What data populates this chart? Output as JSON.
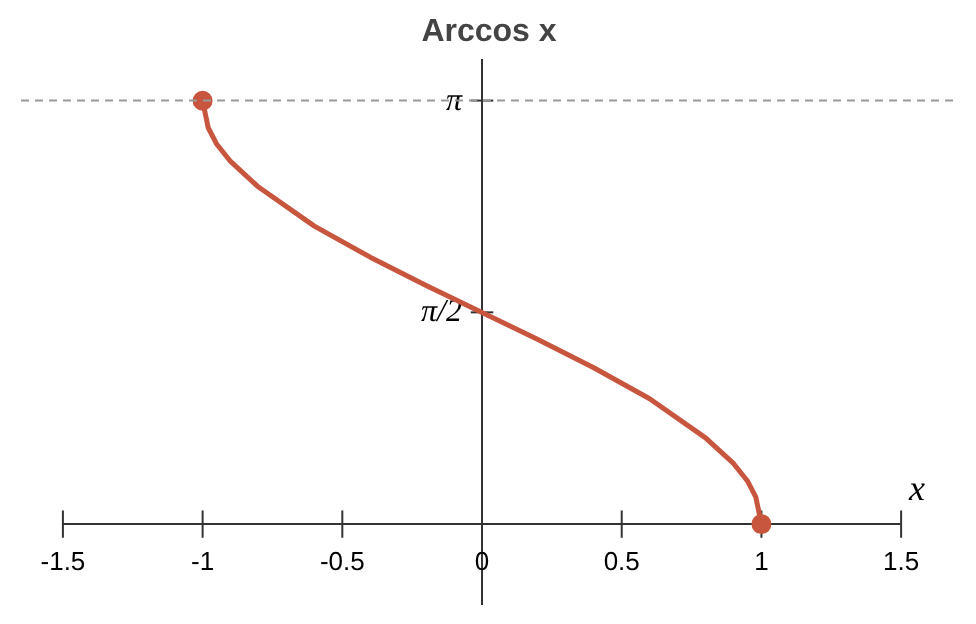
{
  "chart_data": {
    "type": "line",
    "title": "Arccos x",
    "xlabel": "x",
    "xlim": [
      -1.65,
      1.7
    ],
    "ylim": [
      -0.6,
      3.45
    ],
    "xticks": [
      -1.5,
      -1,
      -0.5,
      0,
      0.5,
      1,
      1.5
    ],
    "yticks": [
      {
        "value": 3.1416,
        "label": "π"
      },
      {
        "value": 1.5708,
        "label": "π/2"
      }
    ],
    "grid": false,
    "ref_lines": [
      {
        "axis": "y",
        "value": 3.1416,
        "label": null,
        "color": "#999999",
        "line_style": "dashed"
      }
    ],
    "series": [
      {
        "color": "#c8553d",
        "marker": "none",
        "x": [
          -1,
          -0.98,
          -0.95,
          -0.9,
          -0.8,
          -0.6,
          -0.4,
          -0.2,
          0,
          0.2,
          0.4,
          0.6,
          0.8,
          0.9,
          0.95,
          0.98,
          1
        ],
        "values": [
          3.14,
          2.94,
          2.82,
          2.69,
          2.5,
          2.21,
          1.98,
          1.77,
          1.57,
          1.37,
          1.16,
          0.93,
          0.64,
          0.45,
          0.32,
          0.2,
          0
        ]
      },
      {
        "type": "scatter",
        "color": "#c8553d",
        "marker": "circle",
        "x": [
          -1,
          1
        ],
        "values": [
          3.14,
          0
        ]
      }
    ]
  }
}
